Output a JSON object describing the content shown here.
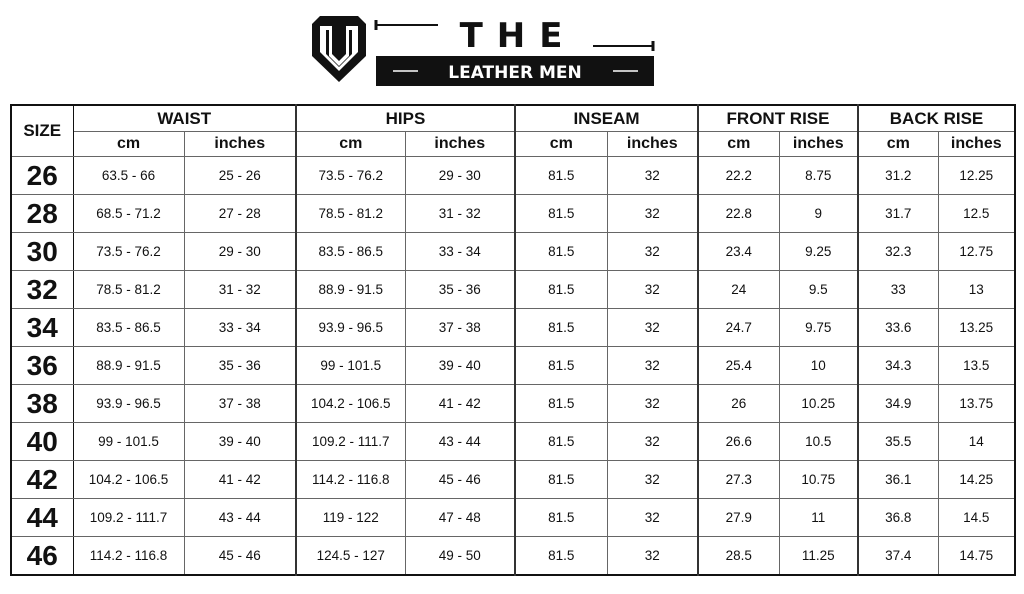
{
  "brand": {
    "logo_text_top": "THE",
    "logo_text_bottom": "LEATHER MEN"
  },
  "table": {
    "size_header": "SIZE",
    "groups": [
      "WAIST",
      "HIPS",
      "INSEAM",
      "FRONT RISE",
      "BACK RISE"
    ],
    "units": [
      "cm",
      "inches"
    ],
    "rows": [
      [
        "26",
        "63.5 - 66",
        "25 - 26",
        "73.5 - 76.2",
        "29 - 30",
        "81.5",
        "32",
        "22.2",
        "8.75",
        "31.2",
        "12.25"
      ],
      [
        "28",
        "68.5 - 71.2",
        "27 - 28",
        "78.5 - 81.2",
        "31 - 32",
        "81.5",
        "32",
        "22.8",
        "9",
        "31.7",
        "12.5"
      ],
      [
        "30",
        "73.5 - 76.2",
        "29 - 30",
        "83.5 - 86.5",
        "33 - 34",
        "81.5",
        "32",
        "23.4",
        "9.25",
        "32.3",
        "12.75"
      ],
      [
        "32",
        "78.5 - 81.2",
        "31 - 32",
        "88.9 - 91.5",
        "35 - 36",
        "81.5",
        "32",
        "24",
        "9.5",
        "33",
        "13"
      ],
      [
        "34",
        "83.5 - 86.5",
        "33 - 34",
        "93.9 - 96.5",
        "37 - 38",
        "81.5",
        "32",
        "24.7",
        "9.75",
        "33.6",
        "13.25"
      ],
      [
        "36",
        "88.9 - 91.5",
        "35 - 36",
        "99 - 101.5",
        "39 - 40",
        "81.5",
        "32",
        "25.4",
        "10",
        "34.3",
        "13.5"
      ],
      [
        "38",
        "93.9 - 96.5",
        "37 - 38",
        "104.2 - 106.5",
        "41 - 42",
        "81.5",
        "32",
        "26",
        "10.25",
        "34.9",
        "13.75"
      ],
      [
        "40",
        "99 - 101.5",
        "39 - 40",
        "109.2 - 111.7",
        "43 - 44",
        "81.5",
        "32",
        "26.6",
        "10.5",
        "35.5",
        "14"
      ],
      [
        "42",
        "104.2 - 106.5",
        "41 - 42",
        "114.2 - 116.8",
        "45 - 46",
        "81.5",
        "32",
        "27.3",
        "10.75",
        "36.1",
        "14.25"
      ],
      [
        "44",
        "109.2 - 111.7",
        "43 - 44",
        "119 - 122",
        "47 - 48",
        "81.5",
        "32",
        "27.9",
        "11",
        "36.8",
        "14.5"
      ],
      [
        "46",
        "114.2 - 116.8",
        "45 - 46",
        "124.5 - 127",
        "49 - 50",
        "81.5",
        "32",
        "28.5",
        "11.25",
        "37.4",
        "14.75"
      ]
    ]
  }
}
